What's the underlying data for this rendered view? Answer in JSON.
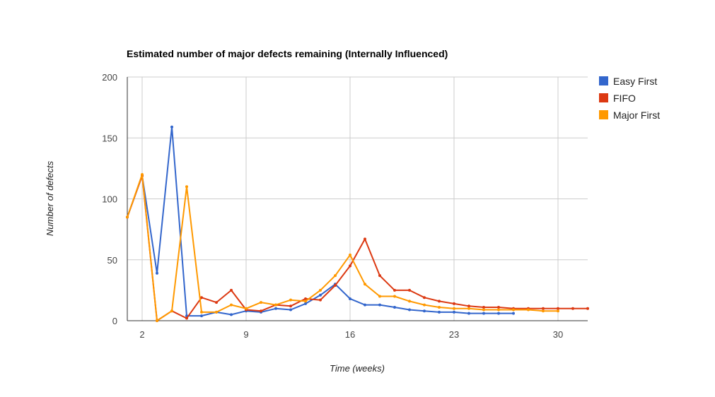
{
  "chart_data": {
    "type": "line",
    "title": "Estimated number of major defects remaining (Internally Influenced)",
    "xlabel": "Time (weeks)",
    "ylabel": "Number of defects",
    "xlim": [
      1,
      32
    ],
    "ylim": [
      0,
      200
    ],
    "x_ticks": [
      2,
      9,
      16,
      23,
      30
    ],
    "y_ticks": [
      0,
      50,
      100,
      150,
      200
    ],
    "grid": true,
    "legend_position": "right",
    "x": [
      1,
      2,
      3,
      4,
      5,
      6,
      7,
      8,
      9,
      10,
      11,
      12,
      13,
      14,
      15,
      16,
      17,
      18,
      19,
      20,
      21,
      22,
      23,
      24,
      25,
      26,
      27,
      28,
      29,
      30,
      31,
      32
    ],
    "series": [
      {
        "name": "Easy First",
        "color": "#3366cc",
        "values": [
          85,
          119,
          39,
          159,
          4,
          4,
          7,
          5,
          8,
          7,
          10,
          9,
          14,
          21,
          30,
          18,
          13,
          13,
          11,
          9,
          8,
          7,
          7,
          6,
          6,
          6,
          6,
          null,
          null,
          null,
          null,
          null
        ]
      },
      {
        "name": "FIFO",
        "color": "#dc3912",
        "values": [
          85,
          119,
          0,
          8,
          2,
          19,
          15,
          25,
          9,
          8,
          13,
          12,
          18,
          17,
          29,
          45,
          67,
          37,
          25,
          25,
          19,
          16,
          14,
          12,
          11,
          11,
          10,
          10,
          10,
          10,
          10,
          10
        ]
      },
      {
        "name": "Major First",
        "color": "#ff9900",
        "values": [
          85,
          120,
          0,
          8,
          110,
          7,
          7,
          13,
          10,
          15,
          13,
          17,
          16,
          25,
          37,
          54,
          30,
          20,
          20,
          16,
          13,
          11,
          10,
          10,
          9,
          9,
          9,
          9,
          8,
          8,
          null,
          null
        ]
      }
    ]
  }
}
